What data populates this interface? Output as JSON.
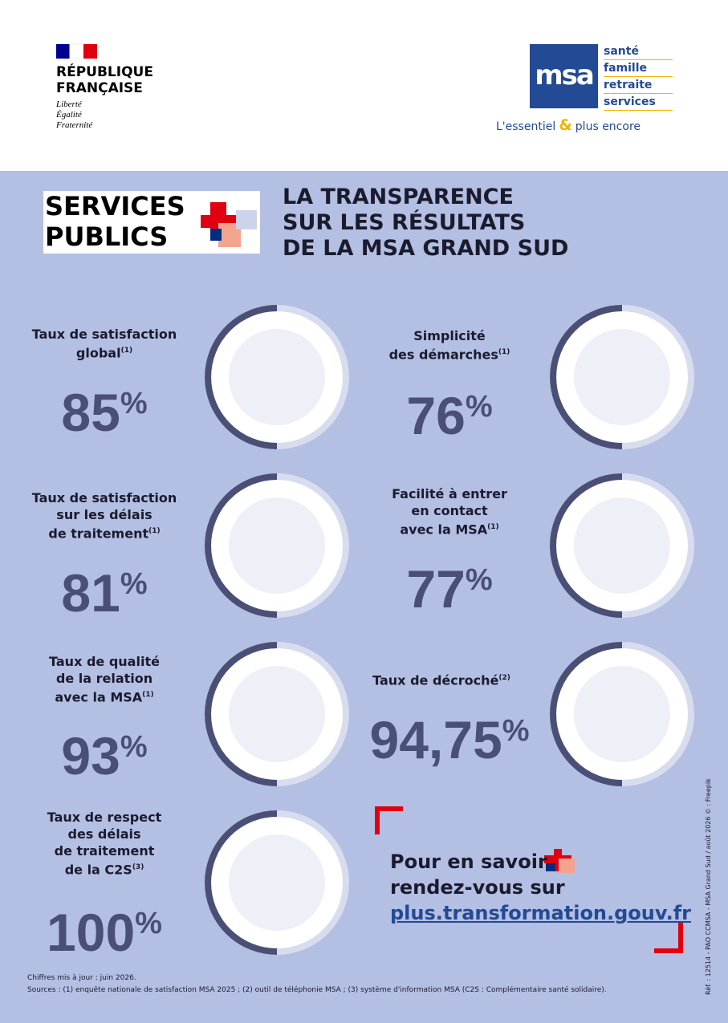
{
  "header": {
    "republique": {
      "name_lines": [
        "RÉPUBLIQUE",
        "FRANÇAISE"
      ],
      "motto": [
        "Liberté",
        "Égalité",
        "Fraternité"
      ]
    },
    "msa": {
      "logo": "msa",
      "tags": [
        "santé",
        "famille",
        "retraite",
        "services"
      ],
      "slogan_start": "L'essentiel",
      "ampersand": "&",
      "slogan_end": "plus encore"
    }
  },
  "badge": {
    "lines": [
      "SERVICES",
      "PUBLICS"
    ]
  },
  "title": {
    "lines": [
      "LA TRANSPARENCE",
      "SUR LES RÉSULTATS",
      "DE LA MSA GRAND SUD"
    ]
  },
  "stats": [
    {
      "label_lines": [
        "Taux de satisfaction",
        "global"
      ],
      "note": "(1)",
      "value": "85",
      "unit": "%"
    },
    {
      "label_lines": [
        "Simplicité",
        "des démarches"
      ],
      "note": "(1)",
      "value": "76",
      "unit": "%"
    },
    {
      "label_lines": [
        "Taux de satisfaction",
        "sur les délais",
        "de traitement"
      ],
      "note": "(1)",
      "value": "81",
      "unit": "%"
    },
    {
      "label_lines": [
        "Facilité à entrer",
        "en contact",
        "avec la MSA"
      ],
      "note": "(1)",
      "value": "77",
      "unit": "%"
    },
    {
      "label_lines": [
        "Taux de qualité",
        "de la relation",
        "avec la MSA"
      ],
      "note": "(1)",
      "value": "93",
      "unit": "%"
    },
    {
      "label_lines": [
        "Taux de décroché"
      ],
      "note": "(2)",
      "value": "94,75",
      "unit": "%"
    },
    {
      "label_lines": [
        "Taux de respect",
        "des délais",
        "de traitement",
        "de la C2S"
      ],
      "note": "(3)",
      "value": "100",
      "unit": "%"
    }
  ],
  "cta": {
    "lines": [
      "Pour en savoir",
      "rendez-vous sur"
    ],
    "link": "plus.transformation.gouv.fr"
  },
  "footer": {
    "update": "Chiffres mis à jour : juin 2026.",
    "sources": "Sources : (1) enquête nationale de satisfaction MSA 2025 ; (2) outil de téléphonie MSA ; (3) système d'information MSA (C2S : Complémentaire santé solidaire)."
  },
  "reference": "Réf. : 12514 - PAO CCMSA - MSA Grand Sud / août 2026 © : Freepik"
}
